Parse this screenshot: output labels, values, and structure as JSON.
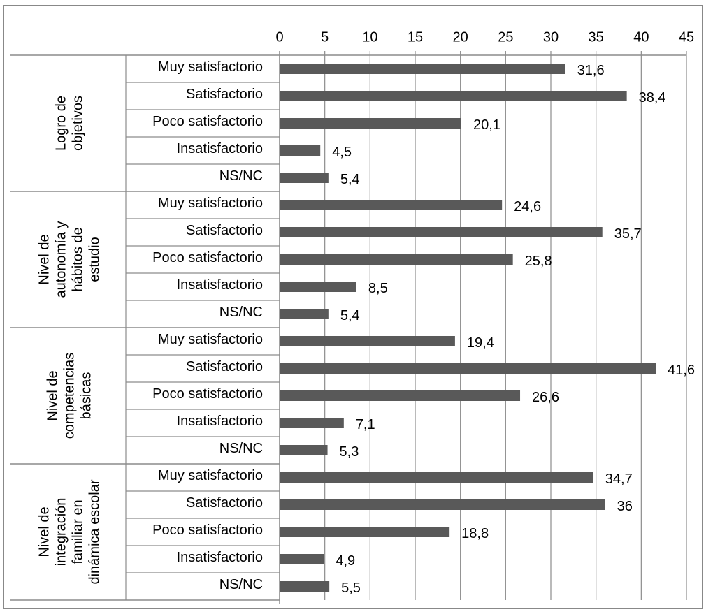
{
  "chart_data": {
    "type": "bar",
    "orientation": "horizontal",
    "title": "",
    "xlabel": "",
    "ylabel": "",
    "xlim": [
      0,
      45
    ],
    "x_ticks": [
      "0",
      "5",
      "10",
      "15",
      "20",
      "25",
      "30",
      "35",
      "40",
      "45"
    ],
    "x_axis_position": "top",
    "grid": "vertical",
    "bar_color": "#595959",
    "groups": [
      {
        "name_lines": [
          "Logro de",
          "objetivos"
        ],
        "categories": [
          "Muy satisfactorio",
          "Satisfactorio",
          "Poco satisfactorio",
          "Insatisfactorio",
          "NS/NC"
        ],
        "values": [
          31.6,
          38.4,
          20.1,
          4.5,
          5.4
        ],
        "value_labels": [
          "31,6",
          "38,4",
          "20,1",
          "4,5",
          "5,4"
        ]
      },
      {
        "name_lines": [
          "Nivel  de",
          "autonomía y",
          "hábitos de",
          "estudio"
        ],
        "categories": [
          "Muy satisfactorio",
          "Satisfactorio",
          "Poco satisfactorio",
          "Insatisfactorio",
          "NS/NC"
        ],
        "values": [
          24.6,
          35.7,
          25.8,
          8.5,
          5.4
        ],
        "value_labels": [
          "24,6",
          "35,7",
          "25,8",
          "8,5",
          "5,4"
        ]
      },
      {
        "name_lines": [
          "Nivel de",
          "competencias",
          "básicas"
        ],
        "categories": [
          "Muy satisfactorio",
          "Satisfactorio",
          "Poco satisfactorio",
          "Insatisfactorio",
          "NS/NC"
        ],
        "values": [
          19.4,
          41.6,
          26.6,
          7.1,
          5.3
        ],
        "value_labels": [
          "19,4",
          "41,6",
          "26,6",
          "7,1",
          "5,3"
        ]
      },
      {
        "name_lines": [
          "Nivel de",
          "integración",
          "familiar en",
          "dinámica escolar"
        ],
        "categories": [
          "Muy satisfactorio",
          "Satisfactorio",
          "Poco satisfactorio",
          "Insatisfactorio",
          "NS/NC"
        ],
        "values": [
          34.7,
          36,
          18.8,
          4.9,
          5.5
        ],
        "value_labels": [
          "34,7",
          "36",
          "18,8",
          "4,9",
          "5,5"
        ]
      }
    ]
  }
}
